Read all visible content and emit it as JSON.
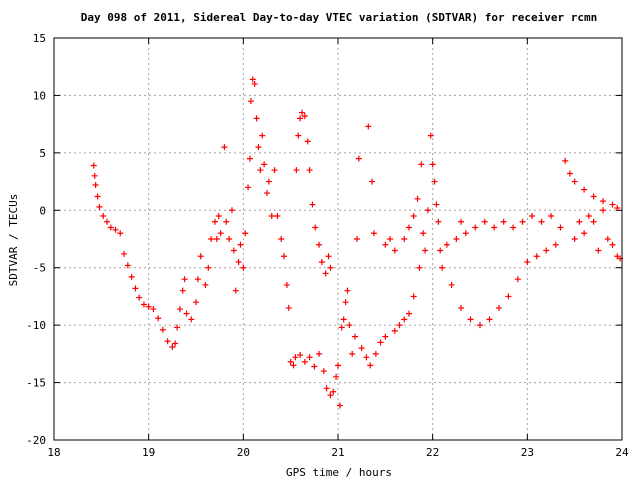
{
  "chart_data": {
    "type": "scatter",
    "title": "Day 098 of 2011, Sidereal Day-to-day VTEC variation (SDTVAR) for receiver rcmn",
    "xlabel": "GPS time / hours",
    "ylabel": "SDTVAR / TECUs",
    "xlim": [
      18,
      24
    ],
    "ylim": [
      -20,
      15
    ],
    "x_ticks": [
      18,
      19,
      20,
      21,
      22,
      23,
      24
    ],
    "y_ticks": [
      -20,
      -15,
      -10,
      -5,
      0,
      5,
      10,
      15
    ],
    "grid": true,
    "marker": "plus",
    "marker_color": "#ff0000",
    "series": [
      {
        "points": [
          [
            18.42,
            3.9
          ],
          [
            18.43,
            3.0
          ],
          [
            18.44,
            2.2
          ],
          [
            18.46,
            1.2
          ],
          [
            18.48,
            0.3
          ],
          [
            18.52,
            -0.5
          ],
          [
            18.56,
            -1.0
          ],
          [
            18.6,
            -1.5
          ],
          [
            18.65,
            -1.7
          ],
          [
            18.7,
            -2.0
          ],
          [
            18.74,
            -3.8
          ],
          [
            18.78,
            -4.8
          ],
          [
            18.82,
            -5.8
          ],
          [
            18.86,
            -6.8
          ],
          [
            18.9,
            -7.6
          ],
          [
            18.95,
            -8.2
          ],
          [
            19.0,
            -8.4
          ],
          [
            19.05,
            -8.6
          ],
          [
            19.1,
            -9.4
          ],
          [
            19.15,
            -10.4
          ],
          [
            19.2,
            -11.4
          ],
          [
            19.25,
            -11.9
          ],
          [
            19.28,
            -11.6
          ],
          [
            19.3,
            -10.2
          ],
          [
            19.33,
            -8.6
          ],
          [
            19.36,
            -7.0
          ],
          [
            19.38,
            -6.0
          ],
          [
            19.4,
            -9.0
          ],
          [
            19.45,
            -9.5
          ],
          [
            19.5,
            -8.0
          ],
          [
            19.52,
            -6.0
          ],
          [
            19.55,
            -4.0
          ],
          [
            19.6,
            -6.5
          ],
          [
            19.63,
            -5.0
          ],
          [
            19.66,
            -2.5
          ],
          [
            19.7,
            -1.0
          ],
          [
            19.72,
            -2.5
          ],
          [
            19.74,
            -0.5
          ],
          [
            19.76,
            -2.0
          ],
          [
            19.8,
            5.5
          ],
          [
            19.82,
            -1.0
          ],
          [
            19.85,
            -2.5
          ],
          [
            19.88,
            0.0
          ],
          [
            19.9,
            -3.5
          ],
          [
            19.92,
            -7.0
          ],
          [
            19.95,
            -4.5
          ],
          [
            19.97,
            -3.0
          ],
          [
            20.0,
            -5.0
          ],
          [
            20.02,
            -2.0
          ],
          [
            20.05,
            2.0
          ],
          [
            20.07,
            4.5
          ],
          [
            20.08,
            9.5
          ],
          [
            20.1,
            11.4
          ],
          [
            20.12,
            11.0
          ],
          [
            20.14,
            8.0
          ],
          [
            20.16,
            5.5
          ],
          [
            20.18,
            3.5
          ],
          [
            20.2,
            6.5
          ],
          [
            20.22,
            4.0
          ],
          [
            20.25,
            1.5
          ],
          [
            20.27,
            2.5
          ],
          [
            20.3,
            -0.5
          ],
          [
            20.33,
            3.5
          ],
          [
            20.36,
            -0.5
          ],
          [
            20.4,
            -2.5
          ],
          [
            20.43,
            -4.0
          ],
          [
            20.46,
            -6.5
          ],
          [
            20.48,
            -8.5
          ],
          [
            20.5,
            -13.2
          ],
          [
            20.53,
            -13.5
          ],
          [
            20.56,
            3.5
          ],
          [
            20.58,
            6.5
          ],
          [
            20.6,
            8.0
          ],
          [
            20.62,
            8.5
          ],
          [
            20.65,
            8.2
          ],
          [
            20.68,
            6.0
          ],
          [
            20.7,
            3.5
          ],
          [
            20.73,
            0.5
          ],
          [
            20.76,
            -1.5
          ],
          [
            20.8,
            -3.0
          ],
          [
            20.83,
            -4.5
          ],
          [
            20.87,
            -5.5
          ],
          [
            20.9,
            -4.0
          ],
          [
            20.92,
            -5.0
          ],
          [
            20.55,
            -12.8
          ],
          [
            20.6,
            -12.6
          ],
          [
            20.65,
            -13.2
          ],
          [
            20.7,
            -12.8
          ],
          [
            20.75,
            -13.6
          ],
          [
            20.8,
            -12.5
          ],
          [
            20.85,
            -14.0
          ],
          [
            20.88,
            -15.5
          ],
          [
            20.92,
            -16.1
          ],
          [
            20.95,
            -15.8
          ],
          [
            20.98,
            -14.5
          ],
          [
            21.0,
            -13.5
          ],
          [
            21.02,
            -17.0
          ],
          [
            21.04,
            -10.2
          ],
          [
            21.06,
            -9.5
          ],
          [
            21.08,
            -8.0
          ],
          [
            21.1,
            -7.0
          ],
          [
            21.12,
            -10.0
          ],
          [
            21.15,
            -12.5
          ],
          [
            21.18,
            -11.0
          ],
          [
            21.2,
            -2.5
          ],
          [
            21.22,
            4.5
          ],
          [
            21.25,
            -12.0
          ],
          [
            21.3,
            -12.8
          ],
          [
            21.32,
            7.3
          ],
          [
            21.34,
            -13.5
          ],
          [
            21.36,
            2.5
          ],
          [
            21.38,
            -2.0
          ],
          [
            21.4,
            -12.5
          ],
          [
            21.45,
            -11.5
          ],
          [
            21.5,
            -3.0
          ],
          [
            21.5,
            -11.0
          ],
          [
            21.55,
            -2.5
          ],
          [
            21.6,
            -3.5
          ],
          [
            21.6,
            -10.5
          ],
          [
            21.65,
            -10.0
          ],
          [
            21.7,
            -2.5
          ],
          [
            21.7,
            -9.5
          ],
          [
            21.75,
            -9.0
          ],
          [
            21.75,
            -1.5
          ],
          [
            21.8,
            -7.5
          ],
          [
            21.8,
            -0.5
          ],
          [
            21.84,
            1.0
          ],
          [
            21.86,
            -5.0
          ],
          [
            21.88,
            4.0
          ],
          [
            21.9,
            -2.0
          ],
          [
            21.92,
            -3.5
          ],
          [
            21.95,
            0.0
          ],
          [
            21.98,
            6.5
          ],
          [
            22.0,
            4.0
          ],
          [
            22.02,
            2.5
          ],
          [
            22.04,
            0.5
          ],
          [
            22.06,
            -1.0
          ],
          [
            22.08,
            -3.5
          ],
          [
            22.1,
            -5.0
          ],
          [
            22.15,
            -3.0
          ],
          [
            22.2,
            -6.5
          ],
          [
            22.25,
            -2.5
          ],
          [
            22.3,
            -8.5
          ],
          [
            22.3,
            -1.0
          ],
          [
            22.35,
            -2.0
          ],
          [
            22.4,
            -9.5
          ],
          [
            22.45,
            -1.5
          ],
          [
            22.5,
            -10.0
          ],
          [
            22.55,
            -1.0
          ],
          [
            22.6,
            -9.5
          ],
          [
            22.65,
            -1.5
          ],
          [
            22.7,
            -8.5
          ],
          [
            22.75,
            -1.0
          ],
          [
            22.8,
            -7.5
          ],
          [
            22.85,
            -1.5
          ],
          [
            22.9,
            -6.0
          ],
          [
            22.95,
            -1.0
          ],
          [
            23.0,
            -4.5
          ],
          [
            23.05,
            -0.5
          ],
          [
            23.1,
            -4.0
          ],
          [
            23.15,
            -1.0
          ],
          [
            23.2,
            -3.5
          ],
          [
            23.25,
            -0.5
          ],
          [
            23.3,
            -3.0
          ],
          [
            23.35,
            -1.5
          ],
          [
            23.4,
            4.3
          ],
          [
            23.45,
            3.2
          ],
          [
            23.5,
            2.5
          ],
          [
            23.5,
            -2.5
          ],
          [
            23.55,
            -1.0
          ],
          [
            23.6,
            1.8
          ],
          [
            23.6,
            -2.0
          ],
          [
            23.65,
            -0.5
          ],
          [
            23.7,
            1.2
          ],
          [
            23.7,
            -1.0
          ],
          [
            23.75,
            -3.5
          ],
          [
            23.8,
            0.8
          ],
          [
            23.8,
            0.0
          ],
          [
            23.85,
            -2.5
          ],
          [
            23.9,
            0.5
          ],
          [
            23.9,
            -3.0
          ],
          [
            23.95,
            0.2
          ],
          [
            23.95,
            -4.0
          ],
          [
            23.98,
            -4.2
          ]
        ]
      }
    ]
  }
}
